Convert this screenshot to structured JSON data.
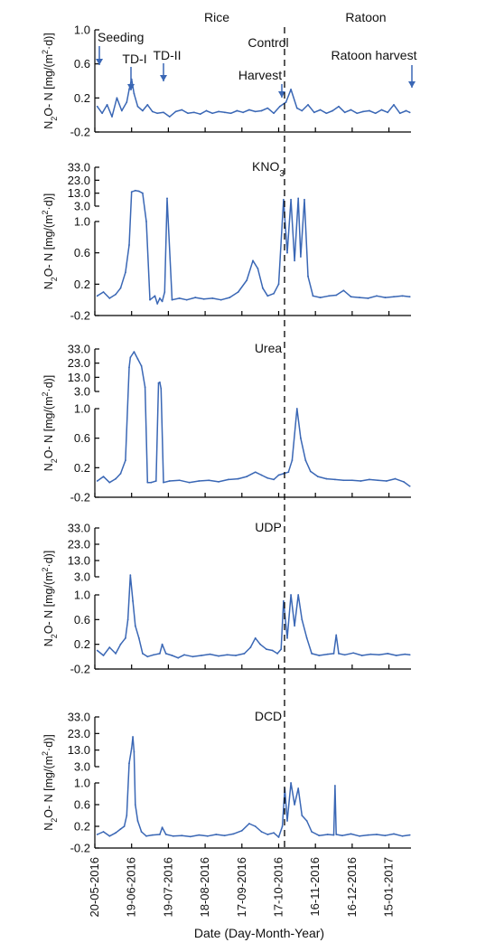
{
  "figure": {
    "section_left": "Rice",
    "section_right": "Ratoon",
    "x_axis_label": "Date (Day-Month-Year)",
    "x_ticks": [
      "20-05-2016",
      "19-06-2016",
      "19-07-2016",
      "18-08-2016",
      "17-09-2016",
      "17-10-2016",
      "16-11-2016",
      "16-12-2016",
      "15-01-2017"
    ],
    "series_color": "#3a67b5"
  },
  "chart_data": [
    {
      "type": "line",
      "title": "Control",
      "ylabel": "N2O-N [mg/(m2·d)]",
      "ylim": [
        -0.2,
        1.0
      ],
      "yticks": [
        "1.0",
        "0.6",
        "0.2",
        "-0.2"
      ],
      "annotations": [
        "Seeding",
        "TD-I",
        "TD-II",
        "Harvest",
        "Ratoon harvest"
      ],
      "annotation_dates": [
        "2016-05-20",
        "2016-06-19",
        "2016-07-13",
        "2016-10-16",
        "2017-01-31"
      ],
      "x": [
        "2016-05-22",
        "2016-05-26",
        "2016-05-30",
        "2016-06-03",
        "2016-06-07",
        "2016-06-11",
        "2016-06-15",
        "2016-06-17",
        "2016-06-19",
        "2016-06-21",
        "2016-06-24",
        "2016-06-28",
        "2016-07-02",
        "2016-07-06",
        "2016-07-10",
        "2016-07-15",
        "2016-07-20",
        "2016-07-25",
        "2016-07-30",
        "2016-08-04",
        "2016-08-09",
        "2016-08-14",
        "2016-08-19",
        "2016-08-24",
        "2016-08-29",
        "2016-09-03",
        "2016-09-08",
        "2016-09-13",
        "2016-09-18",
        "2016-09-23",
        "2016-09-28",
        "2016-10-03",
        "2016-10-08",
        "2016-10-13",
        "2016-10-18",
        "2016-10-23",
        "2016-10-27",
        "2016-11-01",
        "2016-11-05",
        "2016-11-10",
        "2016-11-15",
        "2016-11-20",
        "2016-11-25",
        "2016-11-30",
        "2016-12-05",
        "2016-12-10",
        "2016-12-15",
        "2016-12-20",
        "2016-12-25",
        "2016-12-30",
        "2017-01-04",
        "2017-01-09",
        "2017-01-14",
        "2017-01-19",
        "2017-01-24",
        "2017-01-29",
        "2017-02-01"
      ],
      "y": [
        0.1,
        0.02,
        0.12,
        -0.02,
        0.2,
        0.05,
        0.15,
        0.3,
        0.42,
        0.25,
        0.1,
        0.05,
        0.12,
        0.04,
        0.02,
        0.03,
        -0.02,
        0.04,
        0.06,
        0.02,
        0.03,
        0.01,
        0.05,
        0.02,
        0.04,
        0.03,
        0.02,
        0.05,
        0.03,
        0.06,
        0.04,
        0.05,
        0.08,
        0.02,
        0.1,
        0.15,
        0.3,
        0.08,
        0.05,
        0.12,
        0.03,
        0.06,
        0.02,
        0.05,
        0.1,
        0.03,
        0.06,
        0.02,
        0.04,
        0.05,
        0.02,
        0.06,
        0.03,
        0.12,
        0.02,
        0.05,
        0.03
      ]
    },
    {
      "type": "line",
      "title": "KNO3",
      "title_main": "KNO",
      "title_sub": "3",
      "ylabel": "N2O-N [mg/(m2·d)]",
      "ylim_lower": [
        -0.2,
        1.0
      ],
      "ylim_upper": [
        3.0,
        33.0
      ],
      "yticks_upper": [
        "33.0",
        "23.0",
        "13.0",
        "3.0"
      ],
      "yticks_lower": [
        "1.0",
        "0.6",
        "0.2",
        "-0.2"
      ],
      "x": [
        "2016-05-22",
        "2016-05-27",
        "2016-06-01",
        "2016-06-06",
        "2016-06-10",
        "2016-06-14",
        "2016-06-17",
        "2016-06-19",
        "2016-06-22",
        "2016-06-25",
        "2016-06-28",
        "2016-07-01",
        "2016-07-04",
        "2016-07-08",
        "2016-07-10",
        "2016-07-12",
        "2016-07-14",
        "2016-07-16",
        "2016-07-18",
        "2016-07-22",
        "2016-07-28",
        "2016-08-03",
        "2016-08-10",
        "2016-08-17",
        "2016-08-24",
        "2016-08-31",
        "2016-09-07",
        "2016-09-14",
        "2016-09-21",
        "2016-09-26",
        "2016-09-30",
        "2016-10-04",
        "2016-10-08",
        "2016-10-13",
        "2016-10-17",
        "2016-10-21",
        "2016-10-24",
        "2016-10-27",
        "2016-10-30",
        "2016-11-02",
        "2016-11-04",
        "2016-11-07",
        "2016-11-10",
        "2016-11-14",
        "2016-11-20",
        "2016-11-27",
        "2016-12-03",
        "2016-12-09",
        "2016-12-15",
        "2016-12-22",
        "2016-12-29",
        "2017-01-05",
        "2017-01-12",
        "2017-01-19",
        "2017-01-26",
        "2017-02-01"
      ],
      "y": [
        0.05,
        0.1,
        0.02,
        0.07,
        0.15,
        0.35,
        0.7,
        14.0,
        15.0,
        14.5,
        13.0,
        1.0,
        0.0,
        0.05,
        -0.05,
        0.02,
        -0.02,
        0.1,
        9.0,
        0.0,
        0.02,
        0.0,
        0.03,
        0.01,
        0.02,
        0.0,
        0.03,
        0.1,
        0.25,
        0.5,
        0.4,
        0.15,
        0.05,
        0.08,
        0.2,
        8.0,
        0.6,
        8.0,
        0.5,
        9.0,
        0.55,
        8.0,
        0.3,
        0.05,
        0.03,
        0.05,
        0.06,
        0.12,
        0.04,
        0.03,
        0.02,
        0.05,
        0.03,
        0.04,
        0.05,
        0.04
      ]
    },
    {
      "type": "line",
      "title": "Urea",
      "ylabel": "N2O-N [mg/(m2·d)]",
      "ylim_lower": [
        -0.2,
        1.0
      ],
      "ylim_upper": [
        3.0,
        33.0
      ],
      "yticks_upper": [
        "33.0",
        "23.0",
        "13.0",
        "3.0"
      ],
      "yticks_lower": [
        "1.0",
        "0.6",
        "0.2",
        "-0.2"
      ],
      "x": [
        "2016-05-22",
        "2016-05-27",
        "2016-06-01",
        "2016-06-06",
        "2016-06-10",
        "2016-06-14",
        "2016-06-17",
        "2016-06-18",
        "2016-06-21",
        "2016-06-24",
        "2016-06-27",
        "2016-06-30",
        "2016-07-02",
        "2016-07-05",
        "2016-07-09",
        "2016-07-11",
        "2016-07-12",
        "2016-07-13",
        "2016-07-15",
        "2016-07-20",
        "2016-07-28",
        "2016-08-05",
        "2016-08-13",
        "2016-08-21",
        "2016-08-29",
        "2016-09-06",
        "2016-09-14",
        "2016-09-21",
        "2016-09-28",
        "2016-10-03",
        "2016-10-08",
        "2016-10-13",
        "2016-10-17",
        "2016-10-21",
        "2016-10-25",
        "2016-10-28",
        "2016-11-01",
        "2016-11-04",
        "2016-11-08",
        "2016-11-12",
        "2016-11-18",
        "2016-11-25",
        "2016-12-02",
        "2016-12-09",
        "2016-12-16",
        "2016-12-23",
        "2016-12-30",
        "2017-01-06",
        "2017-01-13",
        "2017-01-20",
        "2017-01-27",
        "2017-02-01"
      ],
      "y": [
        0.02,
        0.08,
        0.0,
        0.05,
        0.12,
        0.3,
        20.0,
        27.0,
        31.0,
        26.0,
        21.0,
        6.0,
        0.0,
        0.0,
        0.02,
        9.0,
        9.5,
        5.0,
        0.0,
        0.02,
        0.03,
        0.0,
        0.02,
        0.03,
        0.01,
        0.04,
        0.05,
        0.08,
        0.14,
        0.1,
        0.06,
        0.04,
        0.1,
        0.12,
        0.14,
        0.3,
        1.0,
        0.6,
        0.3,
        0.15,
        0.08,
        0.05,
        0.04,
        0.03,
        0.03,
        0.02,
        0.04,
        0.03,
        0.02,
        0.05,
        0.01,
        -0.05
      ]
    },
    {
      "type": "line",
      "title": "UDP",
      "ylabel": "N2O-N [mg/(m2·d)]",
      "ylim_lower": [
        -0.2,
        1.0
      ],
      "ylim_upper": [
        3.0,
        33.0
      ],
      "yticks_upper": [
        "33.0",
        "23.0",
        "13.0",
        "3.0"
      ],
      "yticks_lower": [
        "1.0",
        "0.6",
        "0.2",
        "-0.2"
      ],
      "x": [
        "2016-05-22",
        "2016-05-27",
        "2016-06-01",
        "2016-06-06",
        "2016-06-10",
        "2016-06-14",
        "2016-06-16",
        "2016-06-18",
        "2016-06-20",
        "2016-06-22",
        "2016-06-25",
        "2016-06-28",
        "2016-07-02",
        "2016-07-07",
        "2016-07-12",
        "2016-07-14",
        "2016-07-17",
        "2016-07-22",
        "2016-07-27",
        "2016-08-01",
        "2016-08-08",
        "2016-08-15",
        "2016-08-22",
        "2016-08-29",
        "2016-09-05",
        "2016-09-12",
        "2016-09-19",
        "2016-09-24",
        "2016-09-28",
        "2016-10-02",
        "2016-10-07",
        "2016-10-12",
        "2016-10-16",
        "2016-10-19",
        "2016-10-21",
        "2016-10-24",
        "2016-10-27",
        "2016-10-30",
        "2016-11-02",
        "2016-11-05",
        "2016-11-09",
        "2016-11-13",
        "2016-11-19",
        "2016-11-26",
        "2016-12-01",
        "2016-12-03",
        "2016-12-05",
        "2016-12-10",
        "2016-12-17",
        "2016-12-24",
        "2016-12-31",
        "2017-01-07",
        "2017-01-14",
        "2017-01-21",
        "2017-01-28",
        "2017-02-01"
      ],
      "y": [
        0.1,
        0.02,
        0.15,
        0.05,
        0.2,
        0.3,
        0.6,
        4.0,
        0.9,
        0.5,
        0.3,
        0.05,
        0.0,
        0.03,
        0.05,
        0.2,
        0.05,
        0.02,
        -0.02,
        0.03,
        0.0,
        0.02,
        0.04,
        0.01,
        0.03,
        0.02,
        0.05,
        0.15,
        0.3,
        0.2,
        0.12,
        0.1,
        0.05,
        0.12,
        0.9,
        0.3,
        1.0,
        0.5,
        1.0,
        0.6,
        0.3,
        0.05,
        0.02,
        0.04,
        0.05,
        0.35,
        0.05,
        0.03,
        0.06,
        0.02,
        0.04,
        0.03,
        0.05,
        0.02,
        0.04,
        0.03
      ]
    },
    {
      "type": "line",
      "title": "DCD",
      "ylabel": "N2O-N [mg/(m2·d)]",
      "ylim_lower": [
        -0.2,
        1.0
      ],
      "ylim_upper": [
        3.0,
        33.0
      ],
      "yticks_upper": [
        "33.0",
        "23.0",
        "13.0",
        "3.0"
      ],
      "yticks_lower": [
        "1.0",
        "0.6",
        "0.2",
        "-0.2"
      ],
      "x": [
        "2016-05-22",
        "2016-05-27",
        "2016-06-01",
        "2016-06-06",
        "2016-06-10",
        "2016-06-13",
        "2016-06-15",
        "2016-06-17",
        "2016-06-19",
        "2016-06-20",
        "2016-06-21",
        "2016-06-22",
        "2016-06-24",
        "2016-06-27",
        "2016-07-01",
        "2016-07-06",
        "2016-07-12",
        "2016-07-14",
        "2016-07-17",
        "2016-07-23",
        "2016-07-30",
        "2016-08-06",
        "2016-08-13",
        "2016-08-20",
        "2016-08-27",
        "2016-09-03",
        "2016-09-10",
        "2016-09-17",
        "2016-09-23",
        "2016-09-28",
        "2016-10-03",
        "2016-10-08",
        "2016-10-13",
        "2016-10-17",
        "2016-10-20",
        "2016-10-22",
        "2016-10-24",
        "2016-10-27",
        "2016-10-30",
        "2016-11-02",
        "2016-11-05",
        "2016-11-09",
        "2016-11-13",
        "2016-11-19",
        "2016-11-26",
        "2016-12-01",
        "2016-12-02",
        "2016-12-03",
        "2016-12-08",
        "2016-12-15",
        "2016-12-22",
        "2016-12-29",
        "2017-01-05",
        "2017-01-12",
        "2017-01-19",
        "2017-01-26",
        "2017-02-01"
      ],
      "y": [
        0.05,
        0.1,
        0.02,
        0.08,
        0.15,
        0.2,
        0.4,
        5.0,
        14.0,
        21.0,
        12.0,
        0.6,
        0.3,
        0.1,
        0.02,
        0.04,
        0.05,
        0.18,
        0.05,
        0.02,
        0.03,
        0.01,
        0.04,
        0.02,
        0.05,
        0.03,
        0.06,
        0.12,
        0.25,
        0.2,
        0.1,
        0.05,
        0.08,
        0.0,
        0.2,
        0.9,
        0.3,
        1.0,
        0.6,
        0.9,
        0.4,
        0.3,
        0.1,
        0.03,
        0.05,
        0.04,
        0.95,
        0.05,
        0.03,
        0.06,
        0.02,
        0.04,
        0.05,
        0.03,
        0.06,
        0.02,
        0.04
      ]
    }
  ]
}
